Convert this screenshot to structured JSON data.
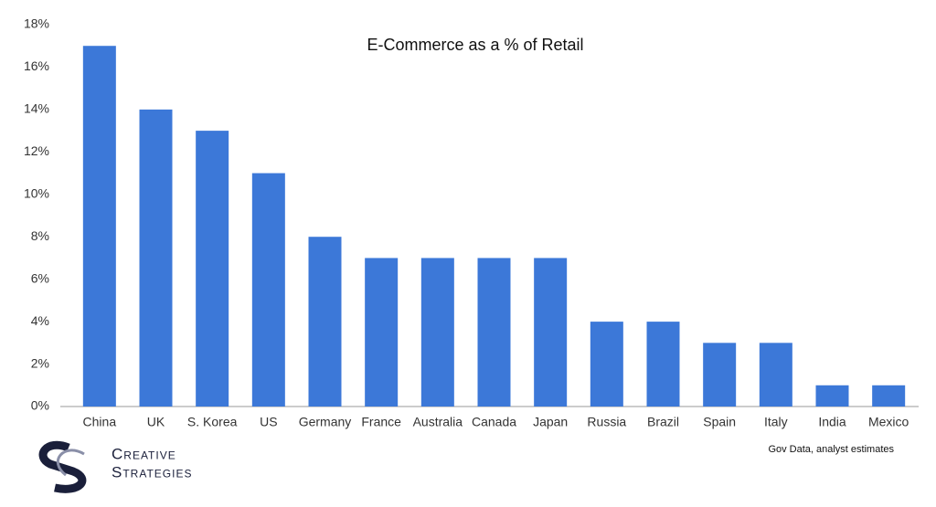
{
  "chart_data": {
    "type": "bar",
    "title": "E-Commerce as a % of Retail",
    "categories": [
      "China",
      "UK",
      "S. Korea",
      "US",
      "Germany",
      "France",
      "Australia",
      "Canada",
      "Japan",
      "Russia",
      "Brazil",
      "Spain",
      "Italy",
      "India",
      "Mexico"
    ],
    "values": [
      17,
      14,
      13,
      11,
      8,
      7,
      7,
      7,
      7,
      4,
      4,
      3,
      3,
      1,
      1
    ],
    "color": "#3c78d8",
    "ylim": [
      0,
      18
    ],
    "yticks": [
      {
        "value": 0,
        "label": "0%"
      },
      {
        "value": 2,
        "label": "2%"
      },
      {
        "value": 4,
        "label": "4%"
      },
      {
        "value": 6,
        "label": "6%"
      },
      {
        "value": 8,
        "label": "8%"
      },
      {
        "value": 10,
        "label": "10%"
      },
      {
        "value": 12,
        "label": "12%"
      },
      {
        "value": 14,
        "label": "14%"
      },
      {
        "value": 16,
        "label": "16%"
      },
      {
        "value": 18,
        "label": "18%"
      }
    ],
    "grid": false,
    "source": "Gov Data, analyst estimates"
  },
  "logo": {
    "line1": "Creative",
    "line2": "Strategies"
  }
}
